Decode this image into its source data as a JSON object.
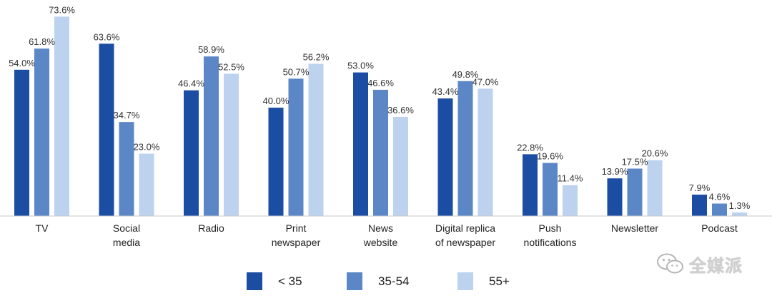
{
  "chart_data": {
    "type": "bar",
    "categories": [
      [
        "TV"
      ],
      [
        "Social",
        "media"
      ],
      [
        "Radio"
      ],
      [
        "Print",
        "newspaper"
      ],
      [
        "News",
        "website"
      ],
      [
        "Digital replica",
        "of newspaper"
      ],
      [
        "Push",
        "notifications"
      ],
      [
        "Newsletter"
      ],
      [
        "Podcast"
      ]
    ],
    "series": [
      {
        "name": "< 35",
        "color": "#1b4ea3",
        "values": [
          54.0,
          63.6,
          46.4,
          40.0,
          53.0,
          43.4,
          22.8,
          13.9,
          7.9
        ],
        "labels": [
          "54.0%",
          "63.6%",
          "46.4%",
          "40.0%",
          "53.0%",
          "43.4%",
          "22.8%",
          "13.9%",
          "7.9%"
        ]
      },
      {
        "name": "35-54",
        "color": "#5b87c7",
        "values": [
          61.8,
          34.7,
          58.9,
          50.7,
          46.6,
          49.8,
          19.6,
          17.5,
          4.6
        ],
        "labels": [
          "61.8%",
          "34.7%",
          "58.9%",
          "50.7%",
          "46.6%",
          "49.8%",
          "19.6%",
          "17.5%",
          "4.6%"
        ]
      },
      {
        "name": "55+",
        "color": "#bcd2ee",
        "values": [
          73.6,
          23.0,
          52.5,
          56.2,
          36.6,
          47.0,
          11.4,
          20.6,
          1.3
        ],
        "labels": [
          "73.6%",
          "23.0%",
          "52.5%",
          "56.2%",
          "36.6%",
          "47.0%",
          "11.4%",
          "20.6%",
          "1.3%"
        ]
      }
    ],
    "ylim": [
      0,
      75
    ],
    "grid": false,
    "legend_position": "bottom-center",
    "value_suffix": "%"
  },
  "legend": {
    "items": [
      {
        "label": "< 35",
        "color": "#1b4ea3"
      },
      {
        "label": "35-54",
        "color": "#5b87c7"
      },
      {
        "label": "55+",
        "color": "#bcd2ee"
      }
    ]
  },
  "watermark": {
    "text": "全媒派",
    "icon": "wechat-icon"
  }
}
